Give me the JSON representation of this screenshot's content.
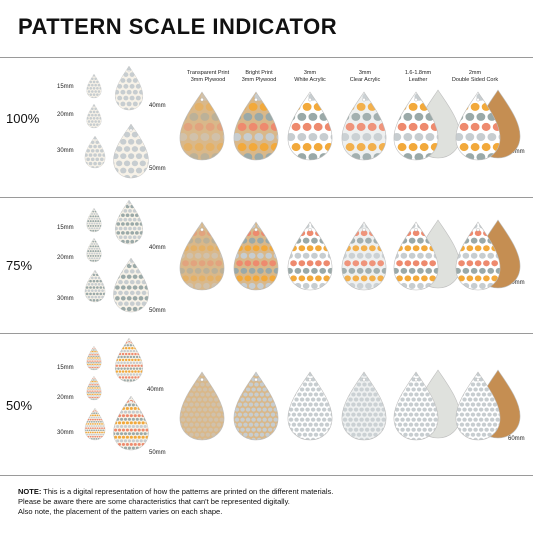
{
  "title": "PATTERN SCALE INDICATOR",
  "columns": [
    {
      "line1": "Transparent Print",
      "line2": "3mm Plywood"
    },
    {
      "line1": "Bright Print",
      "line2": "3mm Plywood"
    },
    {
      "line1": "3mm",
      "line2": "White Acrylic"
    },
    {
      "line1": "3mm",
      "line2": "Clear Acrylic"
    },
    {
      "line1": "1.6-1.8mm",
      "line2": "Leather"
    },
    {
      "line1": "2mm",
      "line2": "Double Sided Cork"
    }
  ],
  "scales": [
    {
      "label": "100%",
      "sizes": [
        "15mm",
        "20mm",
        "30mm",
        "40mm",
        "50mm"
      ],
      "big_size": "60mm"
    },
    {
      "label": "75%",
      "sizes": [
        "15mm",
        "20mm",
        "30mm",
        "40mm",
        "50mm"
      ],
      "big_size": "60mm"
    },
    {
      "label": "50%",
      "sizes": [
        "15mm",
        "20mm",
        "30mm",
        "40mm",
        "50mm"
      ],
      "big_size": "60mm"
    }
  ],
  "note": {
    "label": "NOTE:",
    "line1": " This is a digital representation of how the patterns are printed on the different materials.",
    "line2": "Please be aware there are some characteristics that can't be represented digitally.",
    "line3": "Also note, the placement of the pattern varies on each shape."
  },
  "colors": {
    "orange": "#f2a93b",
    "teal": "#9aa9a8",
    "coral": "#ee8a6e",
    "grey": "#c7cdd0",
    "cream": "#f7f2e8",
    "plywood": "#d9b88a",
    "cork": "#c58e52",
    "leather": "#dfe1dd"
  }
}
